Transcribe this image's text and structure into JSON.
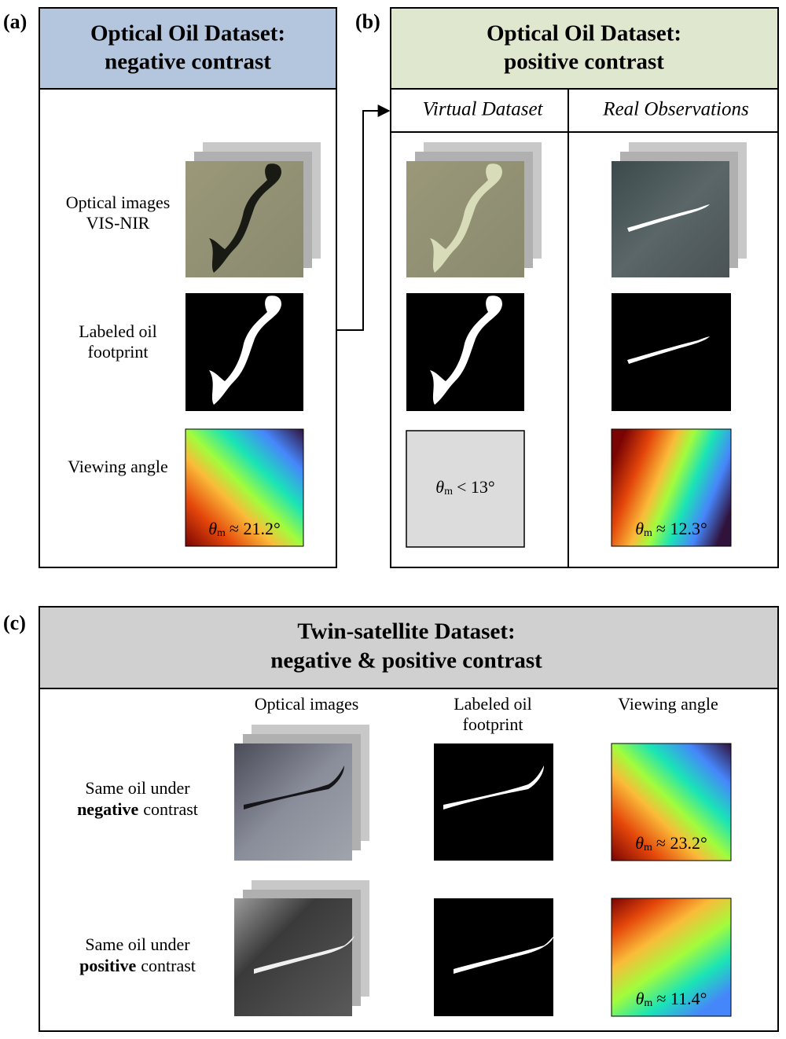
{
  "panel_a": {
    "label": "(a)",
    "title": [
      "Optical Oil Dataset:",
      "negative contrast"
    ],
    "row_labels": [
      [
        "Optical images",
        "VIS-NIR"
      ],
      [
        "Labeled oil",
        "footprint"
      ],
      [
        "Viewing angle"
      ]
    ],
    "angle": {
      "symbol": "θ",
      "sub": "m",
      "relation": "≈ 21.2°"
    }
  },
  "panel_b": {
    "label": "(b)",
    "title": [
      "Optical Oil Dataset:",
      "positive contrast"
    ],
    "columns": [
      "Virtual Dataset",
      "Real Observations"
    ],
    "virtual_angle": {
      "symbol": "θ",
      "sub": "m",
      "relation": "< 13°"
    },
    "real_angle": {
      "symbol": "θ",
      "sub": "m",
      "relation": "≈ 12.3°"
    }
  },
  "panel_c": {
    "label": "(c)",
    "title": [
      "Twin-satellite Dataset:",
      "negative & positive contrast"
    ],
    "columns": [
      [
        "Optical images"
      ],
      [
        "Labeled oil",
        "footprint"
      ],
      [
        "Viewing angle"
      ]
    ],
    "rows": [
      {
        "label": [
          "Same oil under",
          "negative",
          "contrast"
        ],
        "angle": {
          "symbol": "θ",
          "sub": "m",
          "relation": "≈ 23.2°"
        }
      },
      {
        "label": [
          "Same oil under",
          "positive",
          "contrast"
        ],
        "angle": {
          "symbol": "θ",
          "sub": "m",
          "relation": "≈ 11.4°"
        }
      }
    ]
  }
}
